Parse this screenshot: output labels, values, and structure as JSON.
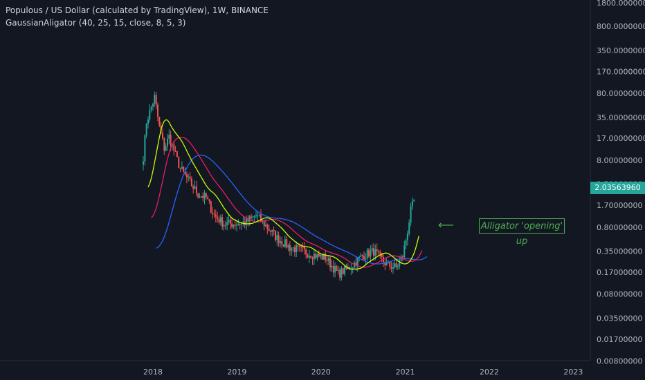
{
  "header": {
    "title": "Populous / US Dollar (calculated by TradingView), 1W, BINANCE",
    "indicator": "GaussianAligator (40, 25, 15, close, 8, 5, 3)"
  },
  "price_badge": "2.03563960",
  "annotation": {
    "text": "Alligator 'opening' up",
    "arrow_glyph": "⟵"
  },
  "colors": {
    "background": "#131722",
    "up": "#26a69a",
    "down": "#ef5350",
    "jaw": "#2962ff",
    "teeth": "#e91e63",
    "lips": "#c6ff00",
    "annotation": "#4caf50"
  },
  "chart_data": {
    "type": "candlestick",
    "y_scale": "log",
    "x_ticks": [
      "2018",
      "2019",
      "2020",
      "2021",
      "2022",
      "2023"
    ],
    "y_ticks": [
      "1800.00000000",
      "800.00000000",
      "350.00000000",
      "170.00000000",
      "80.00000000",
      "35.00000000",
      "17.00000000",
      "8.00000000",
      "3.50000000",
      "1.70000000",
      "0.80000000",
      "0.35000000",
      "0.17000000",
      "0.08000000",
      "0.03500000",
      "0.01700000",
      "0.00800000"
    ],
    "y_tick_values": [
      1800,
      800,
      350,
      170,
      80,
      35,
      17,
      8,
      3.5,
      1.7,
      0.8,
      0.35,
      0.17,
      0.08,
      0.035,
      0.017,
      0.008
    ],
    "x_range": [
      "2017-10",
      "2023-06"
    ],
    "last_price": 2.0356396,
    "price_path": [
      {
        "date": "2017-11-20",
        "price": 9
      },
      {
        "date": "2017-12-04",
        "price": 30
      },
      {
        "date": "2017-12-25",
        "price": 50
      },
      {
        "date": "2018-01-08",
        "price": 70
      },
      {
        "date": "2018-01-29",
        "price": 25
      },
      {
        "date": "2018-02-19",
        "price": 12
      },
      {
        "date": "2018-03-12",
        "price": 18
      },
      {
        "date": "2018-04-02",
        "price": 11
      },
      {
        "date": "2018-04-30",
        "price": 6
      },
      {
        "date": "2018-06-04",
        "price": 4
      },
      {
        "date": "2018-07-16",
        "price": 2.5
      },
      {
        "date": "2018-08-20",
        "price": 2.2
      },
      {
        "date": "2018-09-24",
        "price": 1.2
      },
      {
        "date": "2018-11-05",
        "price": 0.9
      },
      {
        "date": "2018-12-17",
        "price": 0.9
      },
      {
        "date": "2019-02-11",
        "price": 0.95
      },
      {
        "date": "2019-03-25",
        "price": 1.2
      },
      {
        "date": "2019-05-13",
        "price": 0.8
      },
      {
        "date": "2019-06-24",
        "price": 0.55
      },
      {
        "date": "2019-08-19",
        "price": 0.4
      },
      {
        "date": "2019-10-14",
        "price": 0.35
      },
      {
        "date": "2019-12-09",
        "price": 0.3
      },
      {
        "date": "2020-01-20",
        "price": 0.28
      },
      {
        "date": "2020-03-16",
        "price": 0.16
      },
      {
        "date": "2020-05-04",
        "price": 0.2
      },
      {
        "date": "2020-06-29",
        "price": 0.3
      },
      {
        "date": "2020-08-17",
        "price": 0.35
      },
      {
        "date": "2020-10-12",
        "price": 0.22
      },
      {
        "date": "2020-11-23",
        "price": 0.2
      },
      {
        "date": "2020-12-21",
        "price": 0.3
      },
      {
        "date": "2021-01-11",
        "price": 0.7
      },
      {
        "date": "2021-01-25",
        "price": 1.4
      },
      {
        "date": "2021-02-08",
        "price": 2.0
      }
    ],
    "series": [
      {
        "name": "jaw"
      },
      {
        "name": "teeth"
      },
      {
        "name": "lips"
      }
    ],
    "annotations": [
      "Alligator 'opening' up"
    ],
    "grid": false,
    "legend": "none"
  }
}
